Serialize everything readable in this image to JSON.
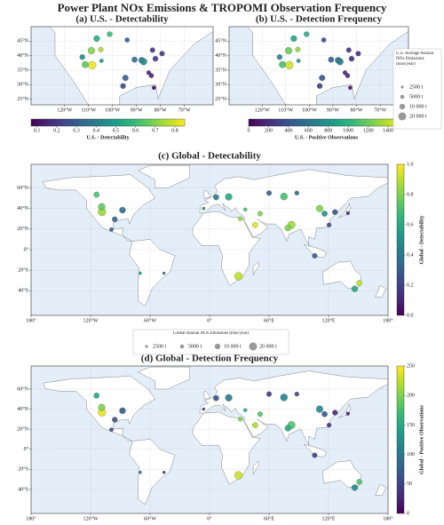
{
  "title": "Power Plant NOx Emissions & TROPOMI Observation Frequency",
  "chart_data": [
    {
      "type": "map",
      "title": "(a) U.S. - Detectability",
      "xlim": [
        -134,
        -58
      ],
      "ylim": [
        23,
        50
      ],
      "xticks": [
        {
          "value": -120,
          "label": "120°W"
        },
        {
          "value": -110,
          "label": "110°W"
        },
        {
          "value": -100,
          "label": "100°W"
        },
        {
          "value": -90,
          "label": "90°W"
        },
        {
          "value": -80,
          "label": "80°W"
        },
        {
          "value": -70,
          "label": "70°W"
        }
      ],
      "yticks": [
        {
          "value": 45,
          "label": "45°N"
        },
        {
          "value": 40,
          "label": "40°N"
        },
        {
          "value": 35,
          "label": "35°N"
        },
        {
          "value": 30,
          "label": "30°N"
        },
        {
          "value": 25,
          "label": "25°N"
        }
      ],
      "colorbar": {
        "label": "U.S. - Detectability",
        "lim": [
          0.07,
          0.85
        ],
        "ticks": [
          0.1,
          0.2,
          0.3,
          0.4,
          0.5,
          0.6,
          0.7,
          0.8
        ]
      },
      "points": {
        "lon": [
          -106.6,
          -108.8,
          -108.5,
          -111.4,
          -112.6,
          -94.6,
          -95.6,
          -90.8,
          -87.8,
          -87.0,
          -83.3,
          -93.9,
          -84.9,
          -83.8,
          -101.2,
          -104.6,
          -79.3,
          -82.1,
          -82.7,
          -104.9
        ],
        "lat": [
          45.9,
          41.7,
          36.7,
          36.9,
          39.5,
          32.3,
          29.5,
          38.6,
          38.4,
          37.9,
          41.9,
          45.4,
          34.1,
          33.1,
          47.4,
          38.2,
          40.7,
          38.9,
          28.9,
          42.1
        ],
        "emissions": [
          12000,
          15000,
          20000,
          14000,
          9000,
          11000,
          9000,
          10000,
          12000,
          14000,
          8000,
          7000,
          6000,
          7000,
          9000,
          5000,
          8000,
          9000,
          5000,
          8000
        ],
        "values": [
          0.55,
          0.7,
          0.82,
          0.65,
          0.45,
          0.3,
          0.25,
          0.35,
          0.4,
          0.45,
          0.2,
          0.3,
          0.15,
          0.15,
          0.6,
          0.5,
          0.2,
          0.2,
          0.1,
          0.75
        ]
      }
    },
    {
      "type": "map",
      "title": "(b) U.S. - Detection Frequency",
      "xlim": [
        -134,
        -58
      ],
      "ylim": [
        23,
        50
      ],
      "xticks": [
        {
          "value": -120,
          "label": "120°W"
        },
        {
          "value": -110,
          "label": "110°W"
        },
        {
          "value": -100,
          "label": "100°W"
        },
        {
          "value": -90,
          "label": "90°W"
        },
        {
          "value": -80,
          "label": "80°W"
        },
        {
          "value": -70,
          "label": "70°W"
        }
      ],
      "yticks": [
        {
          "value": 45,
          "label": "45°N"
        },
        {
          "value": 40,
          "label": "40°N"
        },
        {
          "value": 35,
          "label": "35°N"
        },
        {
          "value": 30,
          "label": "30°N"
        },
        {
          "value": 25,
          "label": "25°N"
        }
      ],
      "colorbar": {
        "label": "U.S. - Positive Observations",
        "lim": [
          0,
          1560
        ],
        "ticks": [
          0,
          200,
          400,
          600,
          800,
          1000,
          1200,
          1400
        ]
      },
      "points": {
        "lon": [
          -106.6,
          -108.8,
          -108.5,
          -111.4,
          -112.6,
          -94.6,
          -95.6,
          -90.8,
          -87.8,
          -87.0,
          -83.3,
          -93.9,
          -84.9,
          -83.8,
          -101.2,
          -104.6,
          -79.3,
          -82.1,
          -82.7,
          -104.9
        ],
        "lat": [
          45.9,
          41.7,
          36.7,
          36.9,
          39.5,
          32.3,
          29.5,
          38.6,
          38.4,
          37.9,
          41.9,
          45.4,
          34.1,
          33.1,
          47.4,
          38.2,
          40.7,
          38.9,
          28.9,
          42.1
        ],
        "emissions": [
          12000,
          15000,
          20000,
          14000,
          9000,
          11000,
          9000,
          10000,
          12000,
          14000,
          8000,
          7000,
          6000,
          7000,
          9000,
          5000,
          8000,
          9000,
          5000,
          8000
        ],
        "values": [
          900,
          1200,
          1450,
          1100,
          700,
          400,
          300,
          500,
          600,
          650,
          250,
          350,
          150,
          180,
          950,
          800,
          200,
          220,
          80,
          1300
        ]
      }
    },
    {
      "type": "map",
      "title": "(c) Global - Detectability",
      "xlim": [
        -180,
        180
      ],
      "ylim": [
        -64,
        83
      ],
      "xticks": [
        {
          "value": -180,
          "label": "180°"
        },
        {
          "value": -120,
          "label": "120°W"
        },
        {
          "value": -60,
          "label": "60°W"
        },
        {
          "value": 0,
          "label": "0°"
        },
        {
          "value": 60,
          "label": "60°E"
        },
        {
          "value": 120,
          "label": "120°E"
        },
        {
          "value": 180,
          "label": "180°"
        }
      ],
      "yticks": [
        {
          "value": 60,
          "label": "60°N"
        },
        {
          "value": 40,
          "label": "40°N"
        },
        {
          "value": 20,
          "label": "20°N"
        },
        {
          "value": 0,
          "label": "0°"
        },
        {
          "value": -20,
          "label": "20°S"
        },
        {
          "value": -40,
          "label": "40°S"
        }
      ],
      "colorbar": {
        "label": "Global - Detectability",
        "lim": [
          0,
          1
        ],
        "ticks": [
          {
            "value": 0,
            "label": "0.0"
          },
          0.2,
          0.4,
          0.6,
          0.8,
          {
            "value": 1,
            "label": "1.0"
          }
        ]
      },
      "points": {
        "lon": [
          -99,
          -6,
          19.3,
          6.6,
          29.2,
          46,
          51,
          31,
          82.6,
          79,
          111,
          116,
          60,
          88,
          75,
          146.4,
          151,
          -46,
          -70,
          126.5,
          139.5,
          120.5,
          106,
          36,
          -108.5,
          -87.8,
          -95.6,
          -108.8,
          -114
        ],
        "lat": [
          19.5,
          40,
          51.3,
          51,
          -26,
          24,
          35,
          30,
          24.1,
          21,
          40,
          35,
          55,
          55,
          51.7,
          -38.2,
          -32.5,
          -23,
          -23,
          36.5,
          35.5,
          24,
          -6,
          39,
          36.7,
          38.4,
          29.5,
          41.7,
          53.5
        ],
        "emissions": [
          5000,
          3000,
          15000,
          10000,
          20000,
          10000,
          8000,
          6000,
          18000,
          12000,
          15000,
          10000,
          8000,
          6000,
          16000,
          12000,
          10000,
          2500,
          3000,
          9000,
          4000,
          6000,
          8000,
          4000,
          20000,
          12000,
          9000,
          15000,
          10000
        ],
        "values": [
          0.3,
          0.5,
          0.6,
          0.4,
          0.9,
          0.95,
          0.8,
          0.85,
          0.85,
          0.8,
          0.8,
          0.5,
          0.3,
          0.35,
          0.7,
          0.6,
          0.9,
          0.4,
          0.6,
          0.25,
          0.15,
          0.2,
          0.3,
          0.7,
          0.85,
          0.35,
          0.3,
          0.75,
          0.7
        ]
      }
    },
    {
      "type": "map",
      "title": "(d) Global - Detection Frequency",
      "xlim": [
        -180,
        180
      ],
      "ylim": [
        -64,
        83
      ],
      "xticks": [
        {
          "value": -180,
          "label": "180°"
        },
        {
          "value": -120,
          "label": "120°W"
        },
        {
          "value": -60,
          "label": "60°W"
        },
        {
          "value": 0,
          "label": "0°"
        },
        {
          "value": 60,
          "label": "60°E"
        },
        {
          "value": 120,
          "label": "120°E"
        },
        {
          "value": 180,
          "label": "180°"
        }
      ],
      "yticks": [
        {
          "value": 60,
          "label": "60°N"
        },
        {
          "value": 40,
          "label": "40°N"
        },
        {
          "value": 20,
          "label": "20°N"
        },
        {
          "value": 0,
          "label": "0°"
        },
        {
          "value": -20,
          "label": "20°S"
        },
        {
          "value": -40,
          "label": "40°S"
        }
      ],
      "colorbar": {
        "label": "Global - Positive Observations",
        "lim": [
          0,
          250
        ],
        "ticks": [
          0,
          50,
          100,
          150,
          200,
          250
        ]
      },
      "points": {
        "lon": [
          -99,
          -6,
          19.3,
          6.6,
          29.2,
          46,
          51,
          31,
          82.6,
          79,
          111,
          116,
          60,
          88,
          75,
          146.4,
          151,
          -46,
          -70,
          126.5,
          139.5,
          120.5,
          106,
          36,
          -108.5,
          -87.8,
          -95.6,
          -108.8,
          -114
        ],
        "lat": [
          19.5,
          40,
          51.3,
          51,
          -26,
          24,
          35,
          30,
          24.1,
          21,
          40,
          35,
          55,
          55,
          51.7,
          -38.2,
          -32.5,
          -23,
          -23,
          36.5,
          35.5,
          24,
          -6,
          39,
          36.7,
          38.4,
          29.5,
          41.7,
          53.5
        ],
        "emissions": [
          5000,
          3000,
          15000,
          10000,
          20000,
          10000,
          8000,
          6000,
          18000,
          12000,
          15000,
          10000,
          8000,
          6000,
          16000,
          12000,
          10000,
          2500,
          3000,
          9000,
          4000,
          6000,
          8000,
          4000,
          20000,
          12000,
          9000,
          15000,
          10000
        ],
        "values": [
          60,
          60,
          100,
          60,
          230,
          220,
          180,
          200,
          180,
          150,
          120,
          70,
          40,
          50,
          110,
          120,
          180,
          40,
          100,
          30,
          20,
          30,
          50,
          150,
          240,
          70,
          60,
          200,
          150
        ]
      }
    }
  ],
  "size_legends": [
    {
      "title": "U.S. Average Annual NOx Emissions (tons/year)",
      "sizes": [
        {
          "value": 2500,
          "label": "2500 t"
        },
        {
          "value": 5000,
          "label": "5000 t"
        },
        {
          "value": 10000,
          "label": "10 000 t"
        },
        {
          "value": 20000,
          "label": "20 000 t"
        }
      ]
    },
    {
      "title": "Global Annual NOx Emissions (tons/year)",
      "sizes": [
        {
          "value": 2500,
          "label": "2500 t"
        },
        {
          "value": 5000,
          "label": "5000 t"
        },
        {
          "value": 10000,
          "label": "10 000 t"
        },
        {
          "value": 20000,
          "label": "20 000 t"
        }
      ]
    }
  ]
}
